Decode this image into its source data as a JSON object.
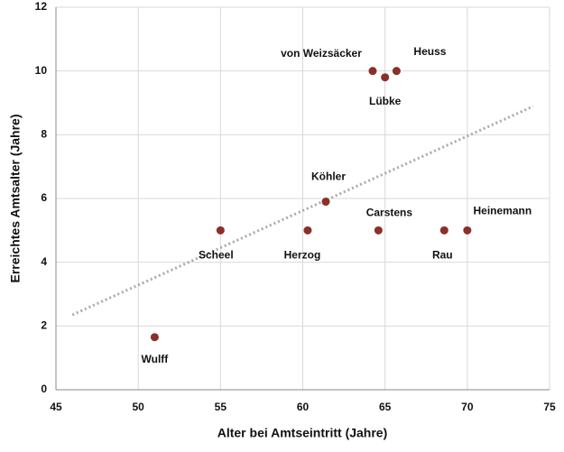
{
  "chart_data": {
    "type": "scatter",
    "xlabel": "Alter bei Amtseintritt (Jahre)",
    "ylabel": "Erreichtes Amtsalter (Jahre)",
    "point_labels": [
      "Wulff",
      "Scheel",
      "Herzog",
      "Köhler",
      "Carstens",
      "Rau",
      "Heinemann",
      "von Weizsäcker",
      "Lübke",
      "Heuss"
    ],
    "x": [
      51,
      55,
      60.3,
      61.4,
      64.6,
      68.6,
      70,
      64.25,
      65,
      65.7
    ],
    "series": [
      {
        "color": "#8b2f2a",
        "values": [
          1.65,
          5,
          5,
          5.9,
          5,
          5,
          5,
          10,
          9.8,
          10
        ]
      }
    ],
    "trendline": {
      "color": "#aaaaaa",
      "x": [
        46,
        74
      ],
      "y": [
        2.35,
        8.89
      ]
    },
    "xlim": [
      45,
      75
    ],
    "xticks": [
      45,
      50,
      55,
      60,
      65,
      70,
      75
    ],
    "ylim": [
      0,
      12
    ],
    "yticks": [
      0,
      2,
      4,
      6,
      8,
      10,
      12
    ],
    "grid": true
  }
}
